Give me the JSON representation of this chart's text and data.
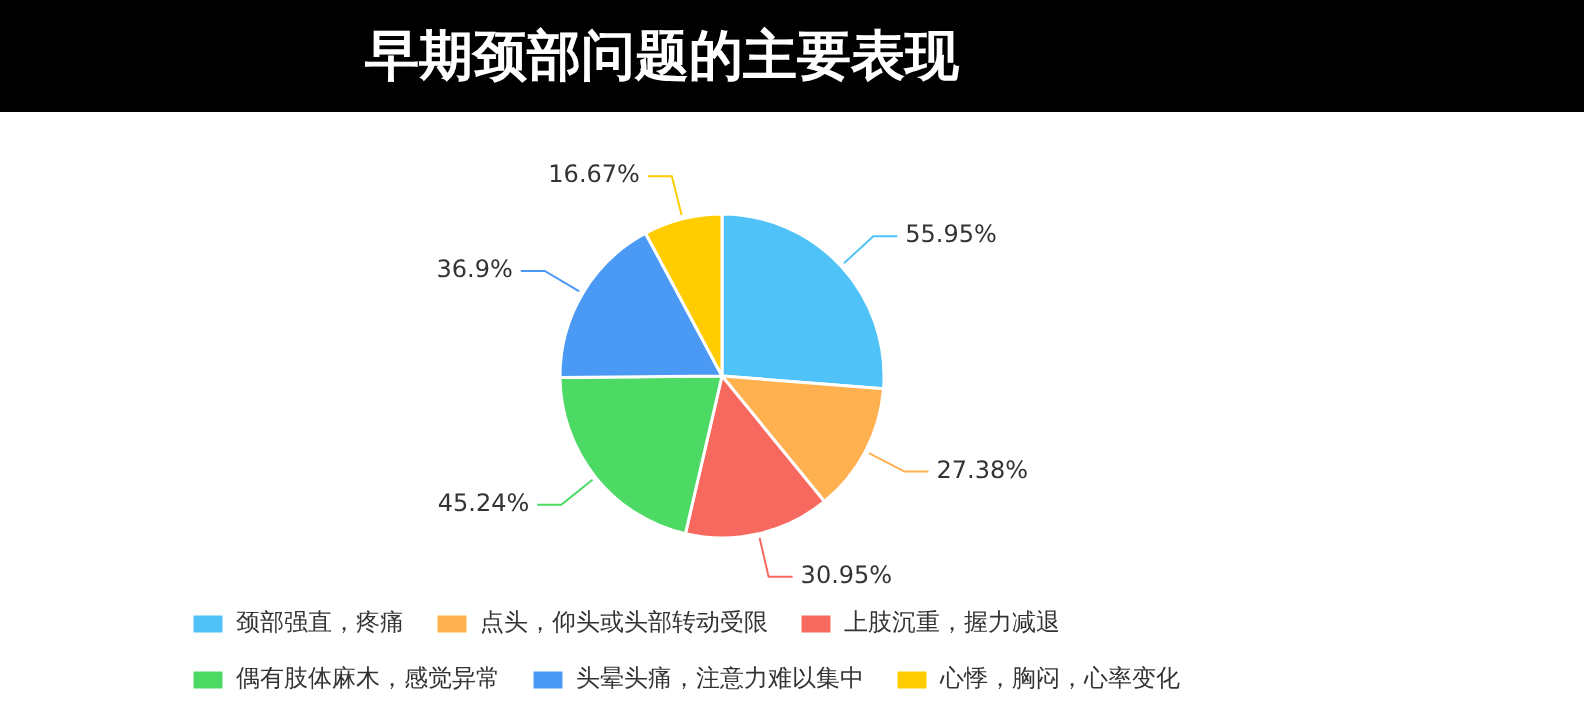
{
  "chart_data": {
    "type": "pie",
    "title": "早期颈部问题的主要表现",
    "categories": [
      "颈部强直，疼痛",
      "点头，仰头或头部转动受限",
      "上肢沉重，握力减退",
      "偶有肢体麻木，感觉异常",
      "头晕头痛，注意力难以集中",
      "心悸，胸闷，心率变化"
    ],
    "values": [
      55.95,
      27.38,
      30.95,
      45.24,
      36.9,
      16.67
    ],
    "colors": [
      "#4fc3f7",
      "#ffb04f",
      "#f7695f",
      "#4cd964",
      "#4a9af5",
      "#ffcc00"
    ],
    "value_labels": [
      "55.95%",
      "27.38%",
      "30.95%",
      "45.24%",
      "36.9%",
      "16.67%"
    ],
    "legend": "bottom"
  }
}
